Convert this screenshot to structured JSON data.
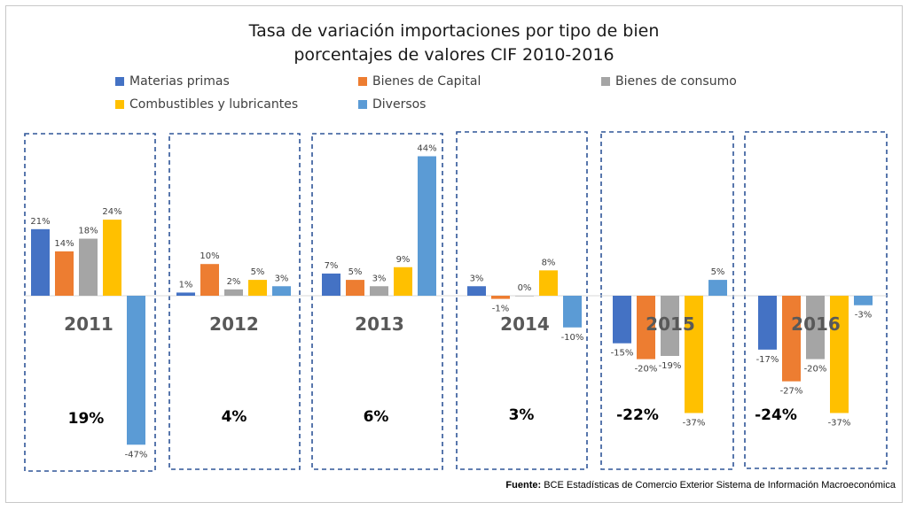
{
  "title_line1": "Tasa de variación importaciones por tipo de bien",
  "title_line2": "porcentajes de valores CIF 2010-2016",
  "source_label": "Fuente:",
  "source_text": "BCE Estadísticas de Comercio Exterior Sistema de Información Macroeconómica",
  "chart_data": {
    "type": "bar",
    "categories": [
      "2011",
      "2012",
      "2013",
      "2014",
      "2015",
      "2016"
    ],
    "series": [
      {
        "name": "Materias primas",
        "color": "#4472c4",
        "values": [
          21,
          1,
          7,
          3,
          -15,
          -17
        ]
      },
      {
        "name": "Bienes de Capital",
        "color": "#ed7d31",
        "values": [
          14,
          10,
          5,
          -1,
          -20,
          -27
        ]
      },
      {
        "name": "Bienes de consumo",
        "color": "#a5a5a5",
        "values": [
          18,
          2,
          3,
          0,
          -19,
          -20
        ]
      },
      {
        "name": "Combustibles y lubricantes",
        "color": "#ffc000",
        "values": [
          24,
          5,
          9,
          8,
          -37,
          -37
        ]
      },
      {
        "name": "Diversos",
        "color": "#5b9bd5",
        "values": [
          -47,
          3,
          44,
          -10,
          5,
          -3
        ]
      }
    ],
    "totals": [
      "19%",
      "4%",
      "6%",
      "3%",
      "-22%",
      "-24%"
    ],
    "value_suffix": "%",
    "legend_position": "top",
    "grid": false
  }
}
